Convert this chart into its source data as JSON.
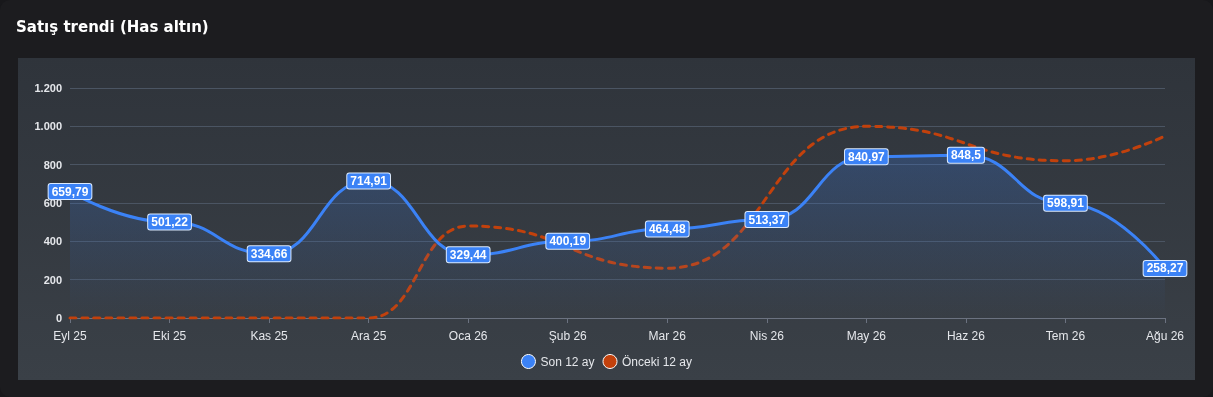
{
  "chart_data": {
    "type": "area",
    "title": "Satış trendi (Has altın)",
    "categories": [
      "Eyl 25",
      "Eki 25",
      "Kas 25",
      "Ara 25",
      "Oca 26",
      "Şub 26",
      "Mar 26",
      "Nis 26",
      "May 26",
      "Haz 26",
      "Tem 26",
      "Ağu 26"
    ],
    "series": [
      {
        "name": "Son 12 ay",
        "color": "#3b82f6",
        "line_style": "solid",
        "values": [
          659.79,
          501.22,
          334.66,
          714.91,
          329.44,
          400.19,
          464.48,
          513.37,
          840.97,
          848.5,
          598.91,
          258.27
        ],
        "value_labels": [
          "659,79",
          "501,22",
          "334,66",
          "714,91",
          "329,44",
          "400,19",
          "464,48",
          "513,37",
          "840,97",
          "848,5",
          "598,91",
          "258,27"
        ]
      },
      {
        "name": "Önceki 12 ay",
        "type": "line",
        "color": "#c2410c",
        "line_style": "dashed",
        "values": [
          0,
          0,
          0,
          0,
          480,
          null,
          260,
          null,
          1000,
          null,
          820,
          950
        ]
      }
    ],
    "ylim": [
      0,
      1200
    ],
    "yticks": [
      0,
      200,
      400,
      600,
      800,
      {
        "value": 1000,
        "label": "1.000"
      },
      {
        "value": 1200,
        "label": "1.200"
      }
    ],
    "grid": "y",
    "legend": "bottom"
  }
}
